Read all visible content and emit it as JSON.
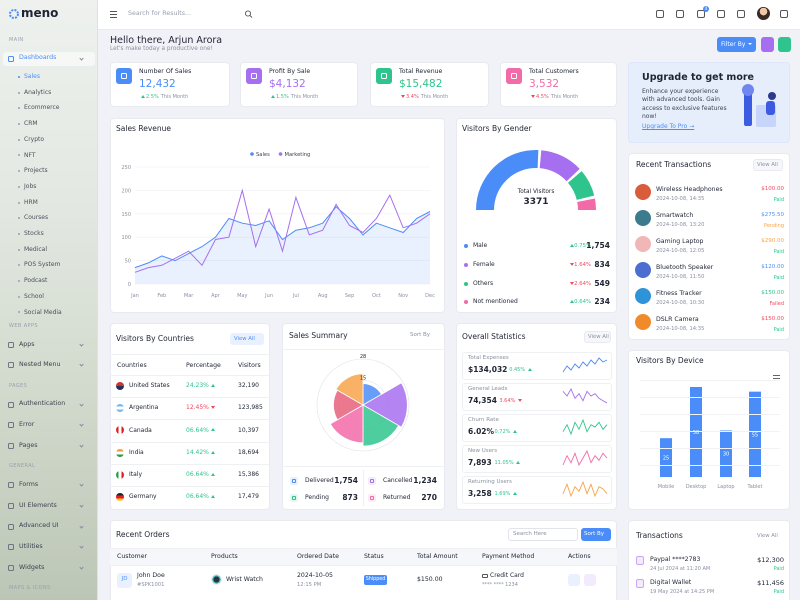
{
  "sidebar": {
    "logo": "meno",
    "sections": [
      {
        "title": "MAIN",
        "items": [
          "Dashboards"
        ]
      },
      {
        "title": "WEB APPS",
        "items": [
          "Apps",
          "Nested Menu"
        ]
      },
      {
        "title": "PAGES",
        "items": [
          "Authentication",
          "Error",
          "Pages"
        ]
      },
      {
        "title": "GENERAL",
        "items": [
          "Forms",
          "UI Elements",
          "Advanced UI",
          "Utilities",
          "Widgets"
        ]
      },
      {
        "title": "MAPS & ICONS",
        "items": []
      }
    ],
    "submenu": [
      "Sales",
      "Analytics",
      "Ecommerce",
      "CRM",
      "Crypto",
      "NFT",
      "Projects",
      "Jobs",
      "HRM",
      "Courses",
      "Stocks",
      "Medical",
      "POS System",
      "Podcast",
      "School",
      "Social Media"
    ]
  },
  "header": {
    "search": "Search for Results...",
    "badge": "4"
  },
  "greeting": {
    "title": "Hello there, Arjun Arora",
    "subtitle": "Let's make today a productive one!",
    "filter": "Filter By"
  },
  "stats": [
    {
      "label": "Number Of Sales",
      "value": "12,432",
      "change": "2.5%",
      "note": "This Month",
      "trend": "up",
      "color": "#4b8df8"
    },
    {
      "label": "Profit By Sale",
      "value": "$4,132",
      "change": "1.5%",
      "note": "This Month",
      "trend": "up",
      "color": "#a66ff0"
    },
    {
      "label": "Total Revenue",
      "value": "$15,482",
      "change": "3.4%",
      "note": "This Month",
      "trend": "down",
      "color": "#2fc48d"
    },
    {
      "label": "Total Customers",
      "value": "3,532",
      "change": "4.5%",
      "note": "This Month",
      "trend": "down",
      "color": "#f36aa9"
    }
  ],
  "upgrade": {
    "title": "Upgrade to get more",
    "text": "Enhance your experience with advanced tools. Gain access to exclusive features now!",
    "link": "Upgrade To Pro →"
  },
  "sales_revenue": {
    "title": "Sales Revenue",
    "chart": {
      "type": "line",
      "categories": [
        "Jan",
        null,
        "Feb",
        null,
        "Mar",
        null,
        "Apr",
        null,
        "May",
        null,
        "Jun",
        null,
        "Jul",
        null,
        "Aug",
        null,
        "Sep",
        null,
        "Oct",
        null,
        "Nov",
        null,
        "Dec"
      ],
      "series": [
        {
          "name": "Sales",
          "color": "#4b8df8",
          "values": [
            35,
            45,
            60,
            50,
            65,
            80,
            100,
            140,
            130,
            125,
            135,
            95,
            115,
            120,
            130,
            165,
            140,
            105,
            130,
            120,
            110,
            140,
            155
          ]
        },
        {
          "name": "Marketing",
          "color": "#a66ff0",
          "values": [
            25,
            35,
            40,
            55,
            70,
            40,
            95,
            100,
            200,
            80,
            160,
            70,
            185,
            105,
            115,
            170,
            125,
            110,
            140,
            190,
            120,
            130,
            150
          ]
        }
      ],
      "ylim": [
        0,
        250
      ],
      "yticks": [
        0,
        50,
        100,
        150,
        200,
        250
      ],
      "grid": true
    }
  },
  "gender": {
    "title": "Visitors By Gender",
    "center_label": "Total Visitors",
    "total": 3371,
    "chart": {
      "type": "gauge",
      "categories": [
        "Male",
        "Female",
        "Others",
        "Not mentioned"
      ],
      "values": [
        1754,
        834,
        549,
        234
      ],
      "value_labels": [
        "1,754",
        "834",
        "549",
        "234"
      ],
      "changes": [
        "0.75%",
        "1.64%",
        "2.64%",
        "0.64%"
      ],
      "trends": [
        "up",
        "down",
        "down",
        "up"
      ],
      "colors": [
        "#4b8df8",
        "#a66ff0",
        "#2fc48d",
        "#f36aa9"
      ]
    }
  },
  "countries": {
    "title": "Visitors By Countries",
    "view_all": "View All",
    "columns": [
      "Countries",
      "Percentage",
      "Visitors"
    ],
    "rows": [
      {
        "country": "United States",
        "percentage": "24.23%",
        "visitors": "32,190",
        "trend": "up"
      },
      {
        "country": "Argentina",
        "percentage": "12.45%",
        "visitors": "123,985",
        "trend": "down"
      },
      {
        "country": "Canada",
        "percentage": "06.64%",
        "visitors": "10,397",
        "trend": "up"
      },
      {
        "country": "India",
        "percentage": "14.42%",
        "visitors": "18,694",
        "trend": "up"
      },
      {
        "country": "Italy",
        "percentage": "06.64%",
        "visitors": "15,386",
        "trend": "up"
      },
      {
        "country": "Germany",
        "percentage": "06.64%",
        "visitors": "17,479",
        "trend": "up"
      }
    ]
  },
  "sales_summary": {
    "title": "Sales Summary",
    "sort": "Sort By",
    "chart": {
      "type": "polar",
      "values": [
        13,
        27,
        25,
        23,
        18,
        19
      ],
      "colors": [
        "#4b8df8",
        "#a66ff0",
        "#2fc48d",
        "#f36aa9",
        "#e6607a",
        "#f7a34a"
      ],
      "rlim": [
        0,
        28
      ],
      "rticks": [
        15,
        28
      ]
    },
    "totals": [
      {
        "label": "Delivered",
        "value": "1,754",
        "color": "#4b8df8"
      },
      {
        "label": "Cancelled",
        "value": "1,234",
        "color": "#a66ff0"
      },
      {
        "label": "Pending",
        "value": "873",
        "color": "#2fc48d"
      },
      {
        "label": "Returned",
        "value": "270",
        "color": "#f36aa9"
      }
    ]
  },
  "overall": {
    "title": "Overall Statistics",
    "view_all": "View All",
    "items": [
      {
        "label": "Total Expenses",
        "value": "$134,032",
        "change": "0.45%",
        "trend": "up",
        "color": "#4b8df8",
        "spark": [
          5,
          8,
          6,
          9,
          7,
          10,
          8,
          11,
          9,
          12,
          10,
          11
        ]
      },
      {
        "label": "General Leads",
        "value": "74,354",
        "change": "3.64%",
        "trend": "down",
        "color": "#a66ff0",
        "spark": [
          10,
          8,
          11,
          7,
          9,
          6,
          10,
          8,
          9,
          7,
          6,
          5
        ]
      },
      {
        "label": "Churn Rate",
        "value": "6.02%",
        "change": "0.72%",
        "trend": "up",
        "color": "#2fc48d",
        "spark": [
          6,
          9,
          5,
          10,
          7,
          11,
          6,
          9,
          8,
          10,
          7,
          9
        ]
      },
      {
        "label": "New Users",
        "value": "7,893",
        "change": "11.05%",
        "trend": "up",
        "color": "#f36aa9",
        "spark": [
          5,
          9,
          6,
          10,
          5,
          8,
          11,
          6,
          9,
          7,
          10,
          8
        ]
      },
      {
        "label": "Returning Users",
        "value": "3,258",
        "change": "1.69%",
        "trend": "up",
        "color": "#f7a34a",
        "spark": [
          6,
          10,
          5,
          9,
          7,
          11,
          6,
          10,
          5,
          9,
          8,
          6
        ]
      }
    ]
  },
  "recent_transactions": {
    "title": "Recent Transactions",
    "view_all": "View All",
    "items": [
      {
        "name": "Wireless Headphones",
        "date": "2024-10-08, 14:35",
        "amount": "$100.00",
        "status": "Paid"
      },
      {
        "name": "Smartwatch",
        "date": "2024-10-08, 13:20",
        "amount": "$275.50",
        "status": "Pending"
      },
      {
        "name": "Gaming Laptop",
        "date": "2024-10-08, 12:05",
        "amount": "$290.00",
        "status": "Paid"
      },
      {
        "name": "Bluetooth Speaker",
        "date": "2024-10-08, 11:50",
        "amount": "$120.00",
        "status": "Paid"
      },
      {
        "name": "Fitness Tracker",
        "date": "2024-10-08, 10:30",
        "amount": "$150.00",
        "status": "Failed"
      },
      {
        "name": "DSLR Camera",
        "date": "2024-10-08, 14:35",
        "amount": "$150.00",
        "status": "Paid"
      }
    ]
  },
  "device": {
    "title": "Visitors By Device",
    "chart": {
      "type": "bar",
      "categories": [
        "Mobile",
        "Desktop",
        "Laptop",
        "Tablet"
      ],
      "values": [
        25,
        58,
        30,
        55
      ],
      "color": "#4b8df8"
    }
  },
  "orders": {
    "title": "Recent Orders",
    "search": "Search Here",
    "sort": "Sort By",
    "columns": [
      "Customer",
      "Products",
      "Ordered Date",
      "Status",
      "Total Amount",
      "Payment Method",
      "Actions"
    ],
    "rows": [
      {
        "initials": "JD",
        "name": "John Doe",
        "id": "#SPK1001",
        "product": "Wrist Watch",
        "date": "2024-10-05",
        "time": "12:15 PM",
        "status": "Shipped",
        "amount": "$150.00",
        "method": "Credit Card",
        "card": "**** **** 1234"
      }
    ]
  },
  "transactions": {
    "title": "Transactions",
    "view_all": "View All",
    "items": [
      {
        "name": "Paypal ****2783",
        "date": "24 Jul 2024 at 11:20 AM",
        "amount": "$12,300",
        "status": "Paid"
      },
      {
        "name": "Digital Wallet",
        "date": "19 May 2024 at 14:25 PM",
        "amount": "$11,456",
        "status": "Paid"
      }
    ]
  }
}
